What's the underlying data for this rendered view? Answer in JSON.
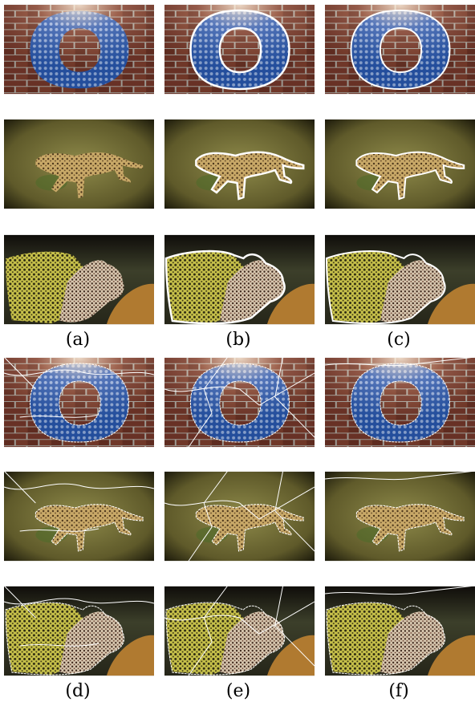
{
  "labels_top": [
    "(a)",
    "(b)",
    "(c)"
  ],
  "labels_bottom": [
    "(d)",
    "(e)",
    "(f)"
  ]
}
